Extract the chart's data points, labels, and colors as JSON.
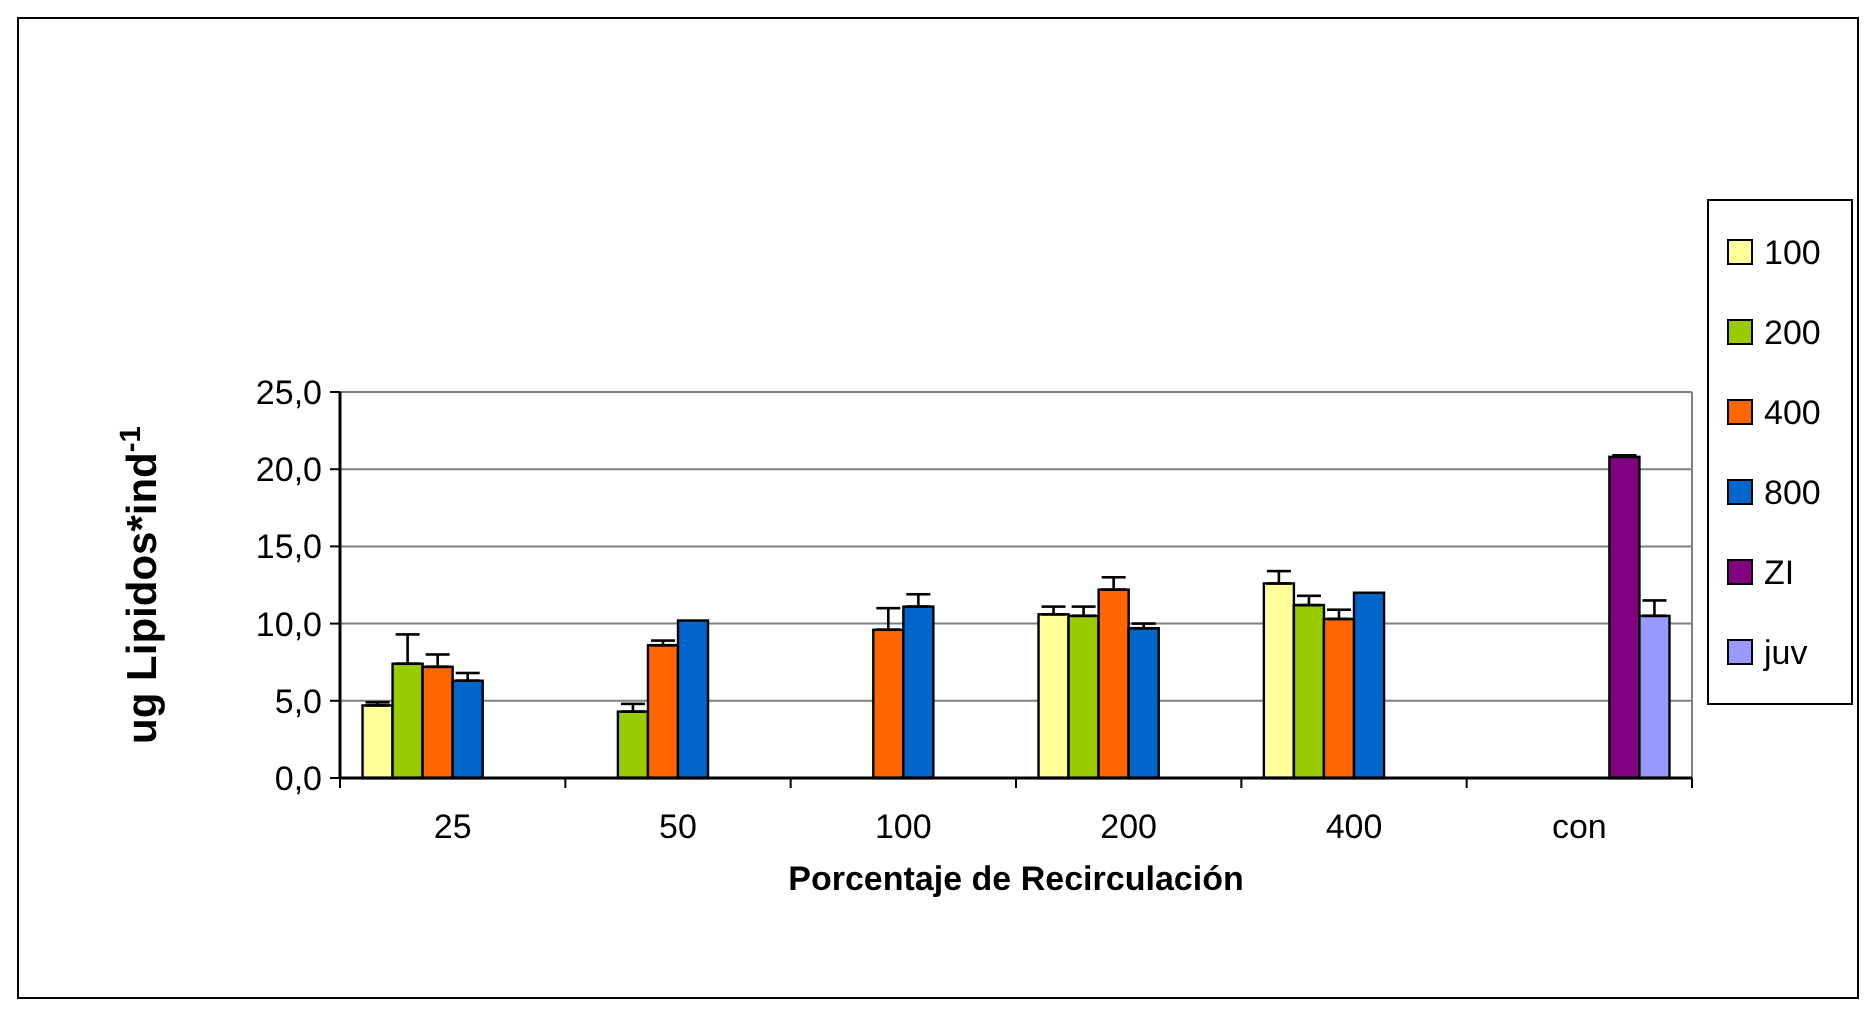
{
  "chart_data": {
    "type": "bar",
    "xlabel": "Porcentaje de Recirculación",
    "ylabel": "ug Lipidos*ind$^{-1}$",
    "categories": [
      "25",
      "50",
      "100",
      "200",
      "400",
      "con"
    ],
    "series": [
      {
        "name": "100",
        "color": "#ffff99",
        "values": [
          4.7,
          null,
          null,
          10.6,
          12.6,
          null
        ],
        "errors": [
          [
            4.7,
            4.9
          ],
          null,
          null,
          [
            10.6,
            11.1
          ],
          [
            12.6,
            13.4
          ],
          null
        ]
      },
      {
        "name": "200",
        "color": "#99cc00",
        "values": [
          7.4,
          4.3,
          null,
          10.5,
          11.2,
          null
        ],
        "errors": [
          [
            7.4,
            9.3
          ],
          [
            4.3,
            4.8
          ],
          null,
          [
            10.5,
            11.1
          ],
          [
            11.2,
            11.8
          ],
          null
        ]
      },
      {
        "name": "400",
        "color": "#ff6600",
        "values": [
          7.2,
          8.6,
          9.6,
          12.2,
          10.3,
          null
        ],
        "errors": [
          [
            7.2,
            8.0
          ],
          [
            8.6,
            8.9
          ],
          [
            9.6,
            11.0
          ],
          [
            12.2,
            13.0
          ],
          [
            10.3,
            10.9
          ],
          null
        ]
      },
      {
        "name": "800",
        "color": "#0066cc",
        "values": [
          6.3,
          10.2,
          11.1,
          9.7,
          12.0,
          null
        ],
        "errors": [
          [
            6.3,
            6.8
          ],
          null,
          [
            11.1,
            11.9
          ],
          [
            9.7,
            10.0
          ],
          null,
          null
        ]
      },
      {
        "name": "ZI",
        "color": "#800080",
        "values": [
          null,
          null,
          null,
          null,
          null,
          20.8
        ],
        "errors": [
          null,
          null,
          null,
          null,
          null,
          [
            20.8,
            20.9
          ]
        ]
      },
      {
        "name": "juv",
        "color": "#9999ff",
        "values": [
          null,
          null,
          null,
          null,
          null,
          10.5
        ],
        "errors": [
          null,
          null,
          null,
          null,
          null,
          [
            10.5,
            11.5
          ]
        ]
      }
    ],
    "ylim": [
      0,
      25
    ],
    "yticks": [
      {
        "value": 0,
        "label": "0,0"
      },
      {
        "value": 5,
        "label": "5,0"
      },
      {
        "value": 10,
        "label": "10,0"
      },
      {
        "value": 15,
        "label": "15,0"
      },
      {
        "value": 20,
        "label": "20,0"
      },
      {
        "value": 25,
        "label": "25,0"
      }
    ],
    "grid": "y",
    "legend": "right"
  }
}
